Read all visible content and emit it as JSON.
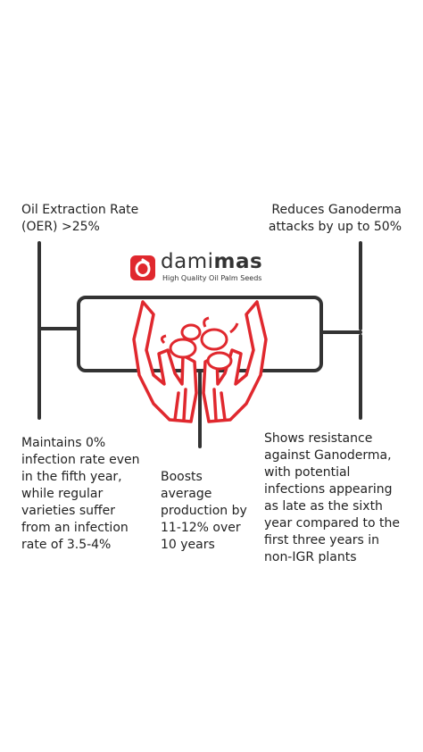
{
  "callouts": {
    "top_left": "Oil Extraction Rate (OER) >25%",
    "top_right": "Reduces Ganoderma attacks by up to 50%",
    "bottom_left": "Maintains 0% infection rate even in the fifth year, while regular varieties suffer from an infection rate of 3.5-4%",
    "bottom_middle": "Boosts average production by 11-12% over 10 years",
    "bottom_right": "Shows resistance against Ganoderma, with potential infections appearing as late as the sixth year compared to the first three years in non-IGR plants"
  },
  "logo": {
    "word_light": "dami",
    "word_bold": "mas",
    "tagline": "High Quality Oil Palm Seeds"
  },
  "colors": {
    "line": "#333333",
    "accent": "#e0282e"
  },
  "icons": [
    "hands-holding-seeds-icon",
    "damimas-logo-icon"
  ]
}
